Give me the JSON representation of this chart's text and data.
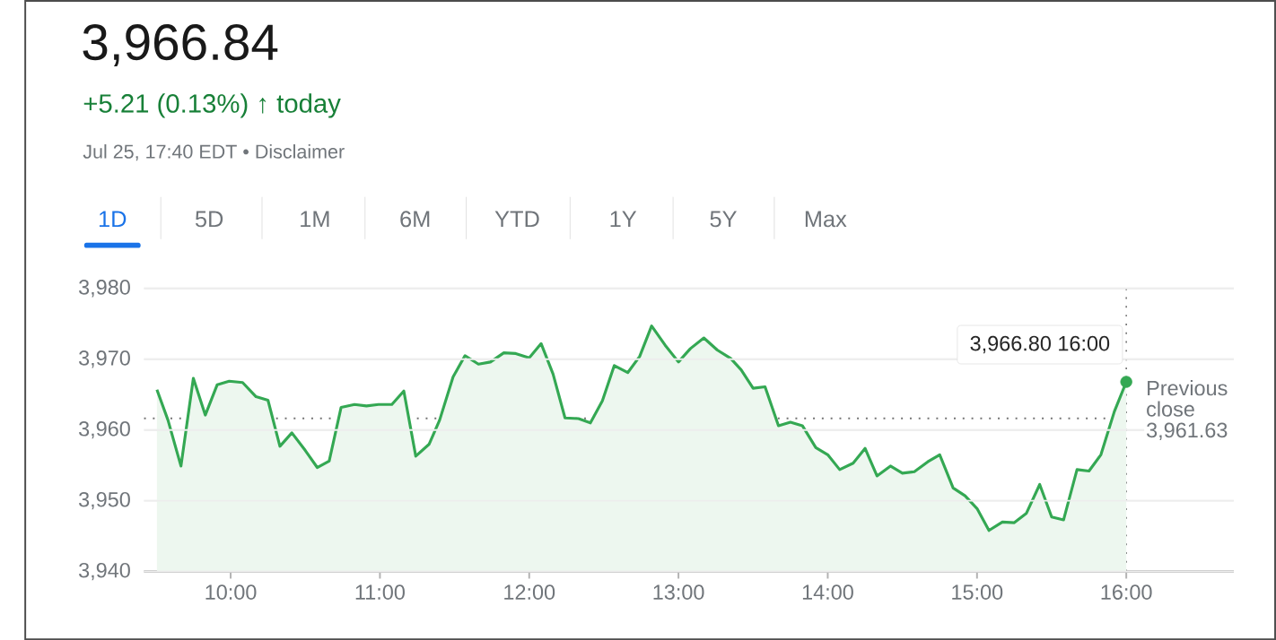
{
  "chart_data": {
    "type": "area",
    "title": "3,966.84",
    "subtitle": "+5.21 (0.13%) ↑ today",
    "annotations": [
      "Jul 25, 17:40 EDT • Disclaimer",
      "1D",
      "5D",
      "1M",
      "6M",
      "YTD",
      "1Y",
      "5Y",
      "Max",
      {
        "text": "3,966.80 16:00",
        "x": 16,
        "y": 3966.8
      }
    ],
    "x": [
      9.506,
      9.58,
      9.667,
      9.75,
      9.83,
      9.91,
      9.99,
      10.08,
      10.17,
      10.25,
      10.33,
      10.41,
      10.5,
      10.58,
      10.66,
      10.74,
      10.83,
      10.91,
      10.99,
      11.08,
      11.16,
      11.24,
      11.33,
      11.4,
      11.49,
      11.57,
      11.66,
      11.74,
      11.83,
      11.91,
      12.0,
      12.08,
      12.16,
      12.24,
      12.33,
      12.41,
      12.49,
      12.57,
      12.66,
      12.74,
      12.82,
      12.91,
      13.0,
      13.08,
      13.17,
      13.26,
      13.35,
      13.42,
      13.5,
      13.58,
      13.67,
      13.75,
      13.83,
      13.92,
      14.0,
      14.08,
      14.17,
      14.25,
      14.33,
      14.42,
      14.5,
      14.58,
      14.67,
      14.75,
      14.84,
      14.92,
      15.0,
      15.08,
      15.17,
      15.25,
      15.33,
      15.42,
      15.5,
      15.58,
      15.67,
      15.75,
      15.83,
      15.92,
      16.0
    ],
    "series": [
      {
        "color": "#34a853",
        "values": [
          3965.7,
          3961.4,
          3954.9,
          3967.3,
          3962.1,
          3966.4,
          3966.9,
          3966.7,
          3964.7,
          3964.2,
          3957.7,
          3959.6,
          3957.1,
          3954.7,
          3955.6,
          3963.2,
          3963.6,
          3963.4,
          3963.6,
          3963.6,
          3965.5,
          3956.3,
          3958.0,
          3961.4,
          3967.5,
          3970.5,
          3969.3,
          3969.6,
          3970.9,
          3970.8,
          3970.2,
          3972.2,
          3967.9,
          3961.7,
          3961.6,
          3961.0,
          3964.1,
          3969.1,
          3968.1,
          3970.4,
          3974.7,
          3972.0,
          3969.6,
          3971.5,
          3973.0,
          3971.3,
          3970.1,
          3968.5,
          3965.9,
          3966.1,
          3960.6,
          3961.1,
          3960.6,
          3957.5,
          3956.5,
          3954.4,
          3955.3,
          3957.4,
          3953.5,
          3954.9,
          3953.9,
          3954.1,
          3955.5,
          3956.5,
          3951.8,
          3950.7,
          3948.9,
          3945.8,
          3947.0,
          3946.9,
          3948.2,
          3952.3,
          3947.7,
          3947.3,
          3954.4,
          3954.2,
          3956.5,
          3962.6,
          3966.8
        ]
      },
      {
        "type": "scatter",
        "x": [
          16
        ],
        "values": [
          3966.8
        ],
        "color": "#34a853",
        "marker": "circle"
      }
    ],
    "xlim": [
      9.42,
      16.72
    ],
    "ylim": [
      3940,
      3981
    ],
    "xticks": [
      {
        "value": 10,
        "label": "10:00"
      },
      {
        "value": 11,
        "label": "11:00"
      },
      {
        "value": 12,
        "label": "12:00"
      },
      {
        "value": 13,
        "label": "13:00"
      },
      {
        "value": 14,
        "label": "14:00"
      },
      {
        "value": 15,
        "label": "15:00"
      },
      {
        "value": 16,
        "label": "16:00"
      }
    ],
    "yticks": [
      {
        "value": 3940,
        "label": "3,940"
      },
      {
        "value": 3950,
        "label": "3,950"
      },
      {
        "value": 3960,
        "label": "3,960"
      },
      {
        "value": 3970,
        "label": "3,970"
      },
      {
        "value": 3980,
        "label": "3,980"
      }
    ],
    "grid": "y",
    "ref_lines": [
      {
        "axis": "y",
        "value": 3961.63,
        "label": "Previous close 3,961.63",
        "line_style": "dotted"
      },
      {
        "axis": "x",
        "value": 16,
        "line_style": "dotted"
      }
    ]
  }
}
